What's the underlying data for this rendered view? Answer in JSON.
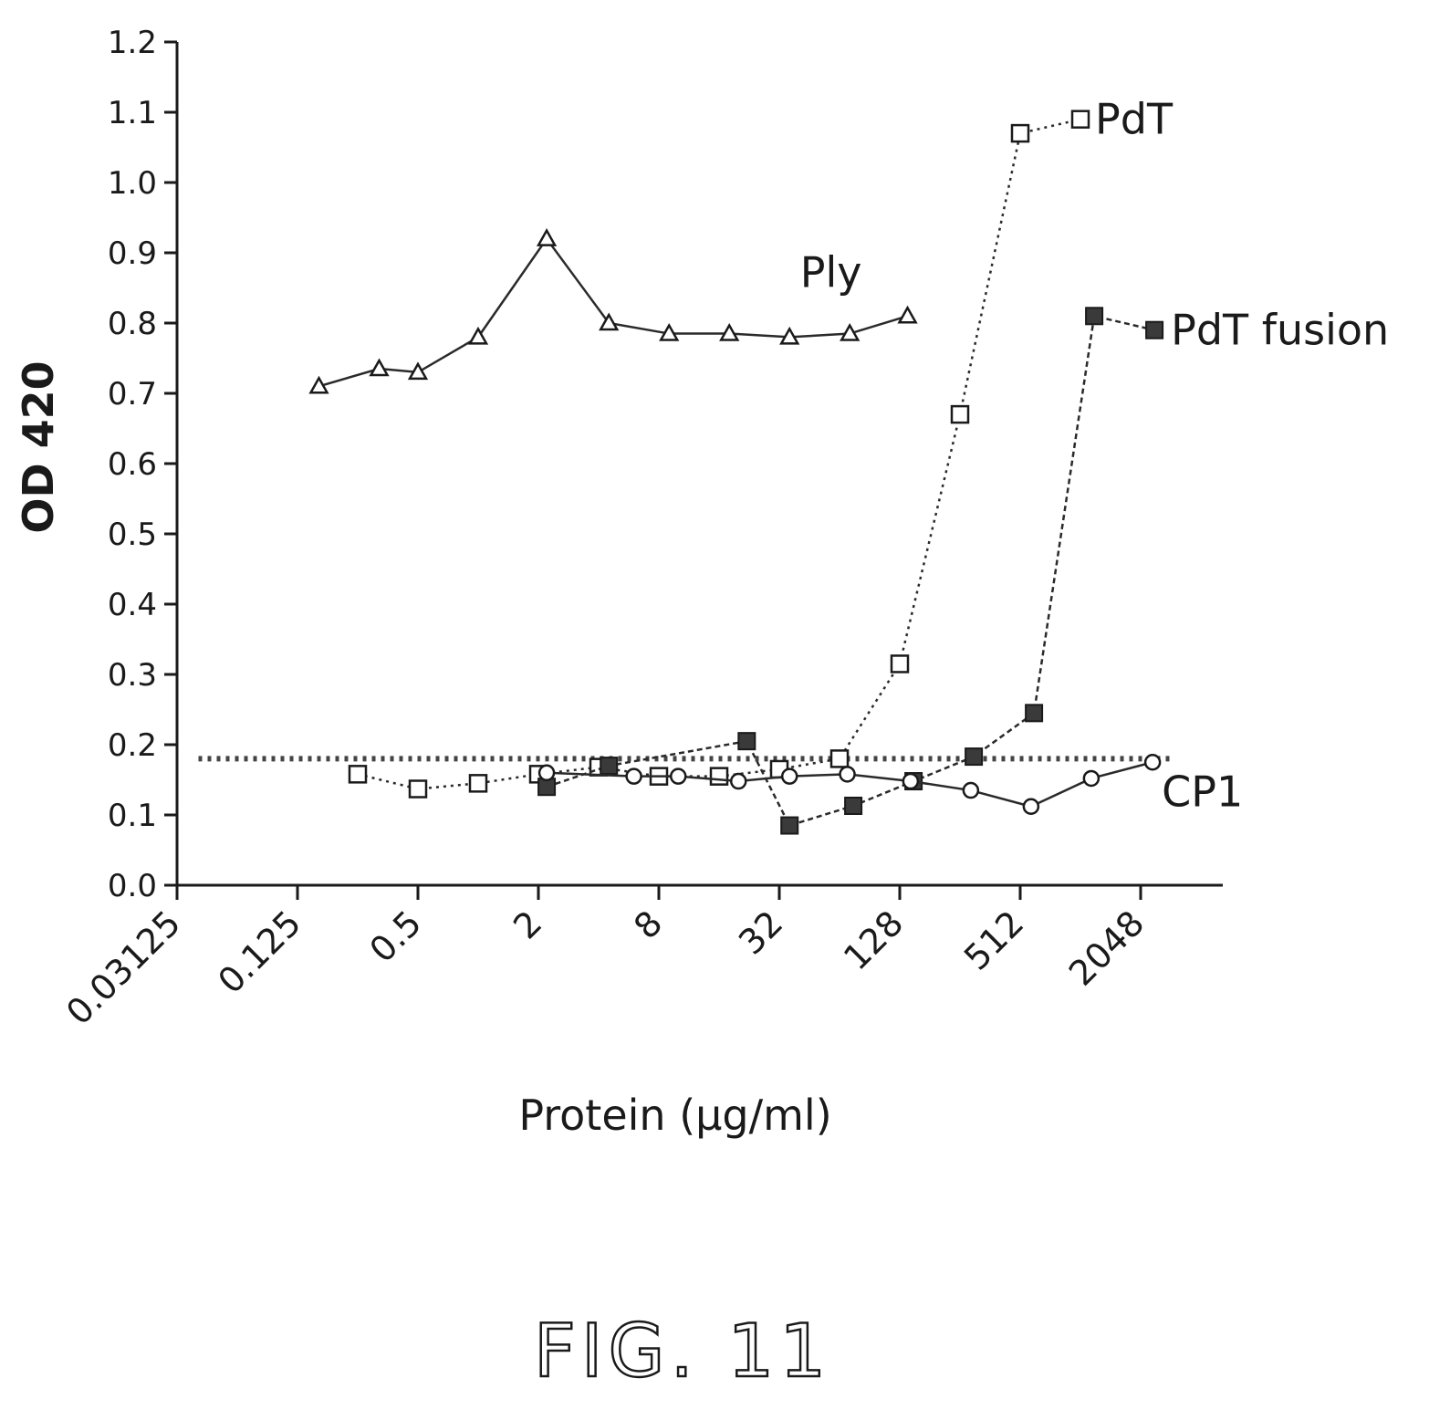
{
  "figure_label": "FIG. 11",
  "chart_data": {
    "type": "line",
    "xlabel": "Protein (µg/ml)",
    "ylabel": "OD 420",
    "xscale": "log2",
    "xlim": [
      0.03125,
      5000
    ],
    "ylim": [
      0.0,
      1.2
    ],
    "x_ticks": [
      "0.03125",
      "0.125",
      "0.5",
      "2",
      "8",
      "32",
      "128",
      "512",
      "2048"
    ],
    "y_ticks": [
      "0.0",
      "0.1",
      "0.2",
      "0.3",
      "0.4",
      "0.5",
      "0.6",
      "0.7",
      "0.8",
      "0.9",
      "1.0",
      "1.1",
      "1.2"
    ],
    "grid": false,
    "legend": "none; series labelled at line ends",
    "threshold": {
      "y": 0.18,
      "style": "dotted",
      "x_range": [
        0.04,
        2900
      ]
    },
    "series": [
      {
        "name": "Ply",
        "marker": "triangle",
        "line": "solid",
        "x": [
          0.16,
          0.32,
          0.5,
          1.0,
          2.2,
          4.5,
          9,
          18,
          36,
          72,
          140
        ],
        "y": [
          0.71,
          0.735,
          0.73,
          0.78,
          0.92,
          0.8,
          0.785,
          0.785,
          0.78,
          0.785,
          0.81
        ]
      },
      {
        "name": "PdT",
        "marker": "open-square",
        "line": "dotted",
        "x": [
          0.25,
          0.5,
          1.0,
          2.0,
          4.0,
          8.0,
          16,
          32,
          64,
          128,
          256,
          512,
          1024
        ],
        "y": [
          0.158,
          0.137,
          0.145,
          0.158,
          0.168,
          0.155,
          0.155,
          0.165,
          0.18,
          0.315,
          0.67,
          1.07,
          1.09
        ]
      },
      {
        "name": "PdT fusion",
        "marker": "filled-square",
        "line": "dashed",
        "x": [
          2.2,
          4.5,
          22,
          36,
          75,
          150,
          300,
          600,
          1200,
          2400
        ],
        "y": [
          0.14,
          0.17,
          0.205,
          0.085,
          0.113,
          0.148,
          0.183,
          0.245,
          0.81,
          0.79
        ]
      },
      {
        "name": "CP1",
        "marker": "open-circle",
        "line": "solid",
        "x": [
          2.2,
          6,
          10,
          20,
          36,
          70,
          145,
          290,
          580,
          1160,
          2350
        ],
        "y": [
          0.16,
          0.155,
          0.155,
          0.148,
          0.155,
          0.158,
          0.148,
          0.135,
          0.112,
          0.152,
          0.175
        ]
      }
    ]
  }
}
